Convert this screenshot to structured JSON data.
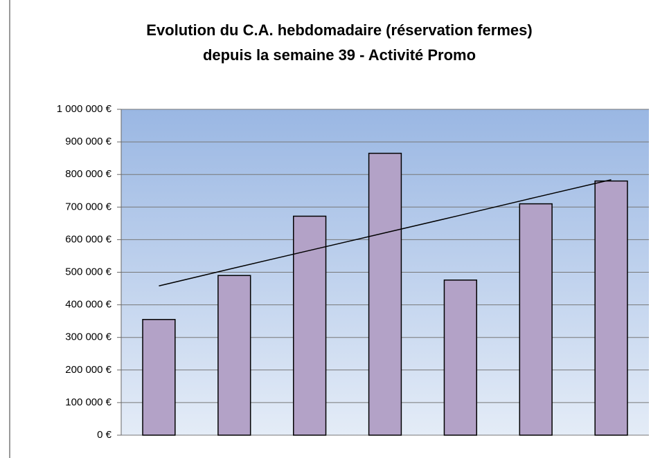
{
  "chart_data": {
    "type": "bar",
    "title": [
      "Evolution du C.A. hebdomadaire (réservation fermes)",
      "depuis la semaine 39 - Activité Promo"
    ],
    "categories": [
      null,
      null,
      null,
      null,
      null,
      null,
      null
    ],
    "values": [
      355000,
      490000,
      672000,
      865000,
      476000,
      710000,
      780000
    ],
    "color": "#b3a2c7",
    "trendline": {
      "values": [
        458000,
        513000,
        567000,
        621000,
        675000,
        730000,
        784000
      ],
      "color": "#000000"
    },
    "ylim": [
      0,
      1000000
    ],
    "yticks": [
      {
        "value": 0,
        "label": "0 €"
      },
      {
        "value": 100000,
        "label": "100 000 €"
      },
      {
        "value": 200000,
        "label": "200 000 €"
      },
      {
        "value": 300000,
        "label": "300 000 €"
      },
      {
        "value": 400000,
        "label": "400 000 €"
      },
      {
        "value": 500000,
        "label": "500 000 €"
      },
      {
        "value": 600000,
        "label": "600 000 €"
      },
      {
        "value": 700000,
        "label": "700 000 €"
      },
      {
        "value": 800000,
        "label": "800 000 €"
      },
      {
        "value": 900000,
        "label": "900 000 €"
      },
      {
        "value": 1000000,
        "label": "1 000 000 €"
      }
    ],
    "grid": true
  }
}
